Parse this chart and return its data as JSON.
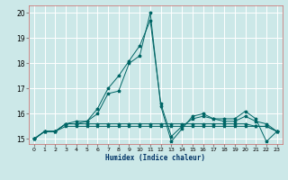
{
  "title": "",
  "xlabel": "Humidex (Indice chaleur)",
  "xlim": [
    -0.5,
    23.5
  ],
  "ylim": [
    14.8,
    20.3
  ],
  "yticks": [
    15,
    16,
    17,
    18,
    19,
    20
  ],
  "xticks": [
    0,
    1,
    2,
    3,
    4,
    5,
    6,
    7,
    8,
    9,
    10,
    11,
    12,
    13,
    14,
    15,
    16,
    17,
    18,
    19,
    20,
    21,
    22,
    23
  ],
  "bg_color": "#cce8e8",
  "grid_color": "#ffffff",
  "line_color": "#006666",
  "series": [
    {
      "x": [
        0,
        1,
        2,
        3,
        4,
        5,
        6,
        7,
        8,
        9,
        10,
        11,
        12,
        13,
        14,
        15,
        16,
        17,
        18,
        19,
        20,
        21,
        22,
        23
      ],
      "y": [
        15.0,
        15.3,
        15.3,
        15.5,
        15.5,
        15.5,
        15.5,
        15.5,
        15.5,
        15.5,
        15.5,
        15.5,
        15.5,
        15.5,
        15.5,
        15.5,
        15.5,
        15.5,
        15.5,
        15.5,
        15.5,
        15.5,
        15.5,
        15.3
      ]
    },
    {
      "x": [
        0,
        1,
        2,
        3,
        4,
        5,
        6,
        7,
        8,
        9,
        10,
        11,
        12,
        13,
        14,
        15,
        16,
        17,
        18,
        19,
        20,
        21,
        22,
        23
      ],
      "y": [
        15.0,
        15.3,
        15.3,
        15.6,
        15.6,
        15.6,
        15.6,
        15.6,
        15.6,
        15.6,
        15.6,
        15.6,
        15.6,
        15.6,
        15.6,
        15.6,
        15.6,
        15.6,
        15.6,
        15.6,
        15.6,
        15.5,
        15.5,
        15.3
      ]
    },
    {
      "x": [
        0,
        1,
        2,
        3,
        4,
        5,
        6,
        7,
        8,
        9,
        10,
        11,
        12,
        13,
        14,
        15,
        16,
        17,
        18,
        19,
        20,
        21,
        22,
        23
      ],
      "y": [
        15.0,
        15.3,
        15.3,
        15.6,
        15.7,
        15.7,
        16.0,
        16.8,
        16.9,
        18.0,
        18.3,
        20.0,
        16.3,
        14.9,
        15.4,
        15.9,
        16.0,
        15.8,
        15.8,
        15.8,
        16.1,
        15.8,
        14.9,
        15.3
      ]
    },
    {
      "x": [
        0,
        1,
        2,
        3,
        4,
        5,
        6,
        7,
        8,
        9,
        10,
        11,
        12,
        13,
        14,
        15,
        16,
        17,
        18,
        19,
        20,
        21,
        22,
        23
      ],
      "y": [
        15.0,
        15.3,
        15.3,
        15.6,
        15.6,
        15.7,
        16.2,
        17.0,
        17.5,
        18.1,
        18.7,
        19.7,
        16.4,
        15.1,
        15.5,
        15.8,
        15.9,
        15.8,
        15.7,
        15.7,
        15.9,
        15.7,
        15.6,
        15.3
      ]
    }
  ]
}
